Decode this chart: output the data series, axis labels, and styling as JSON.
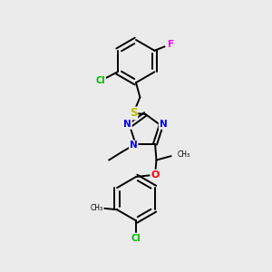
{
  "bg_color": "#ebebeb",
  "bond_color": "#000000",
  "atom_colors": {
    "Cl": "#00bb00",
    "F": "#ff00ff",
    "S": "#bbbb00",
    "N": "#0000ff",
    "O": "#ff0000",
    "C": "#000000"
  },
  "figsize": [
    3.0,
    3.0
  ],
  "dpi": 100
}
